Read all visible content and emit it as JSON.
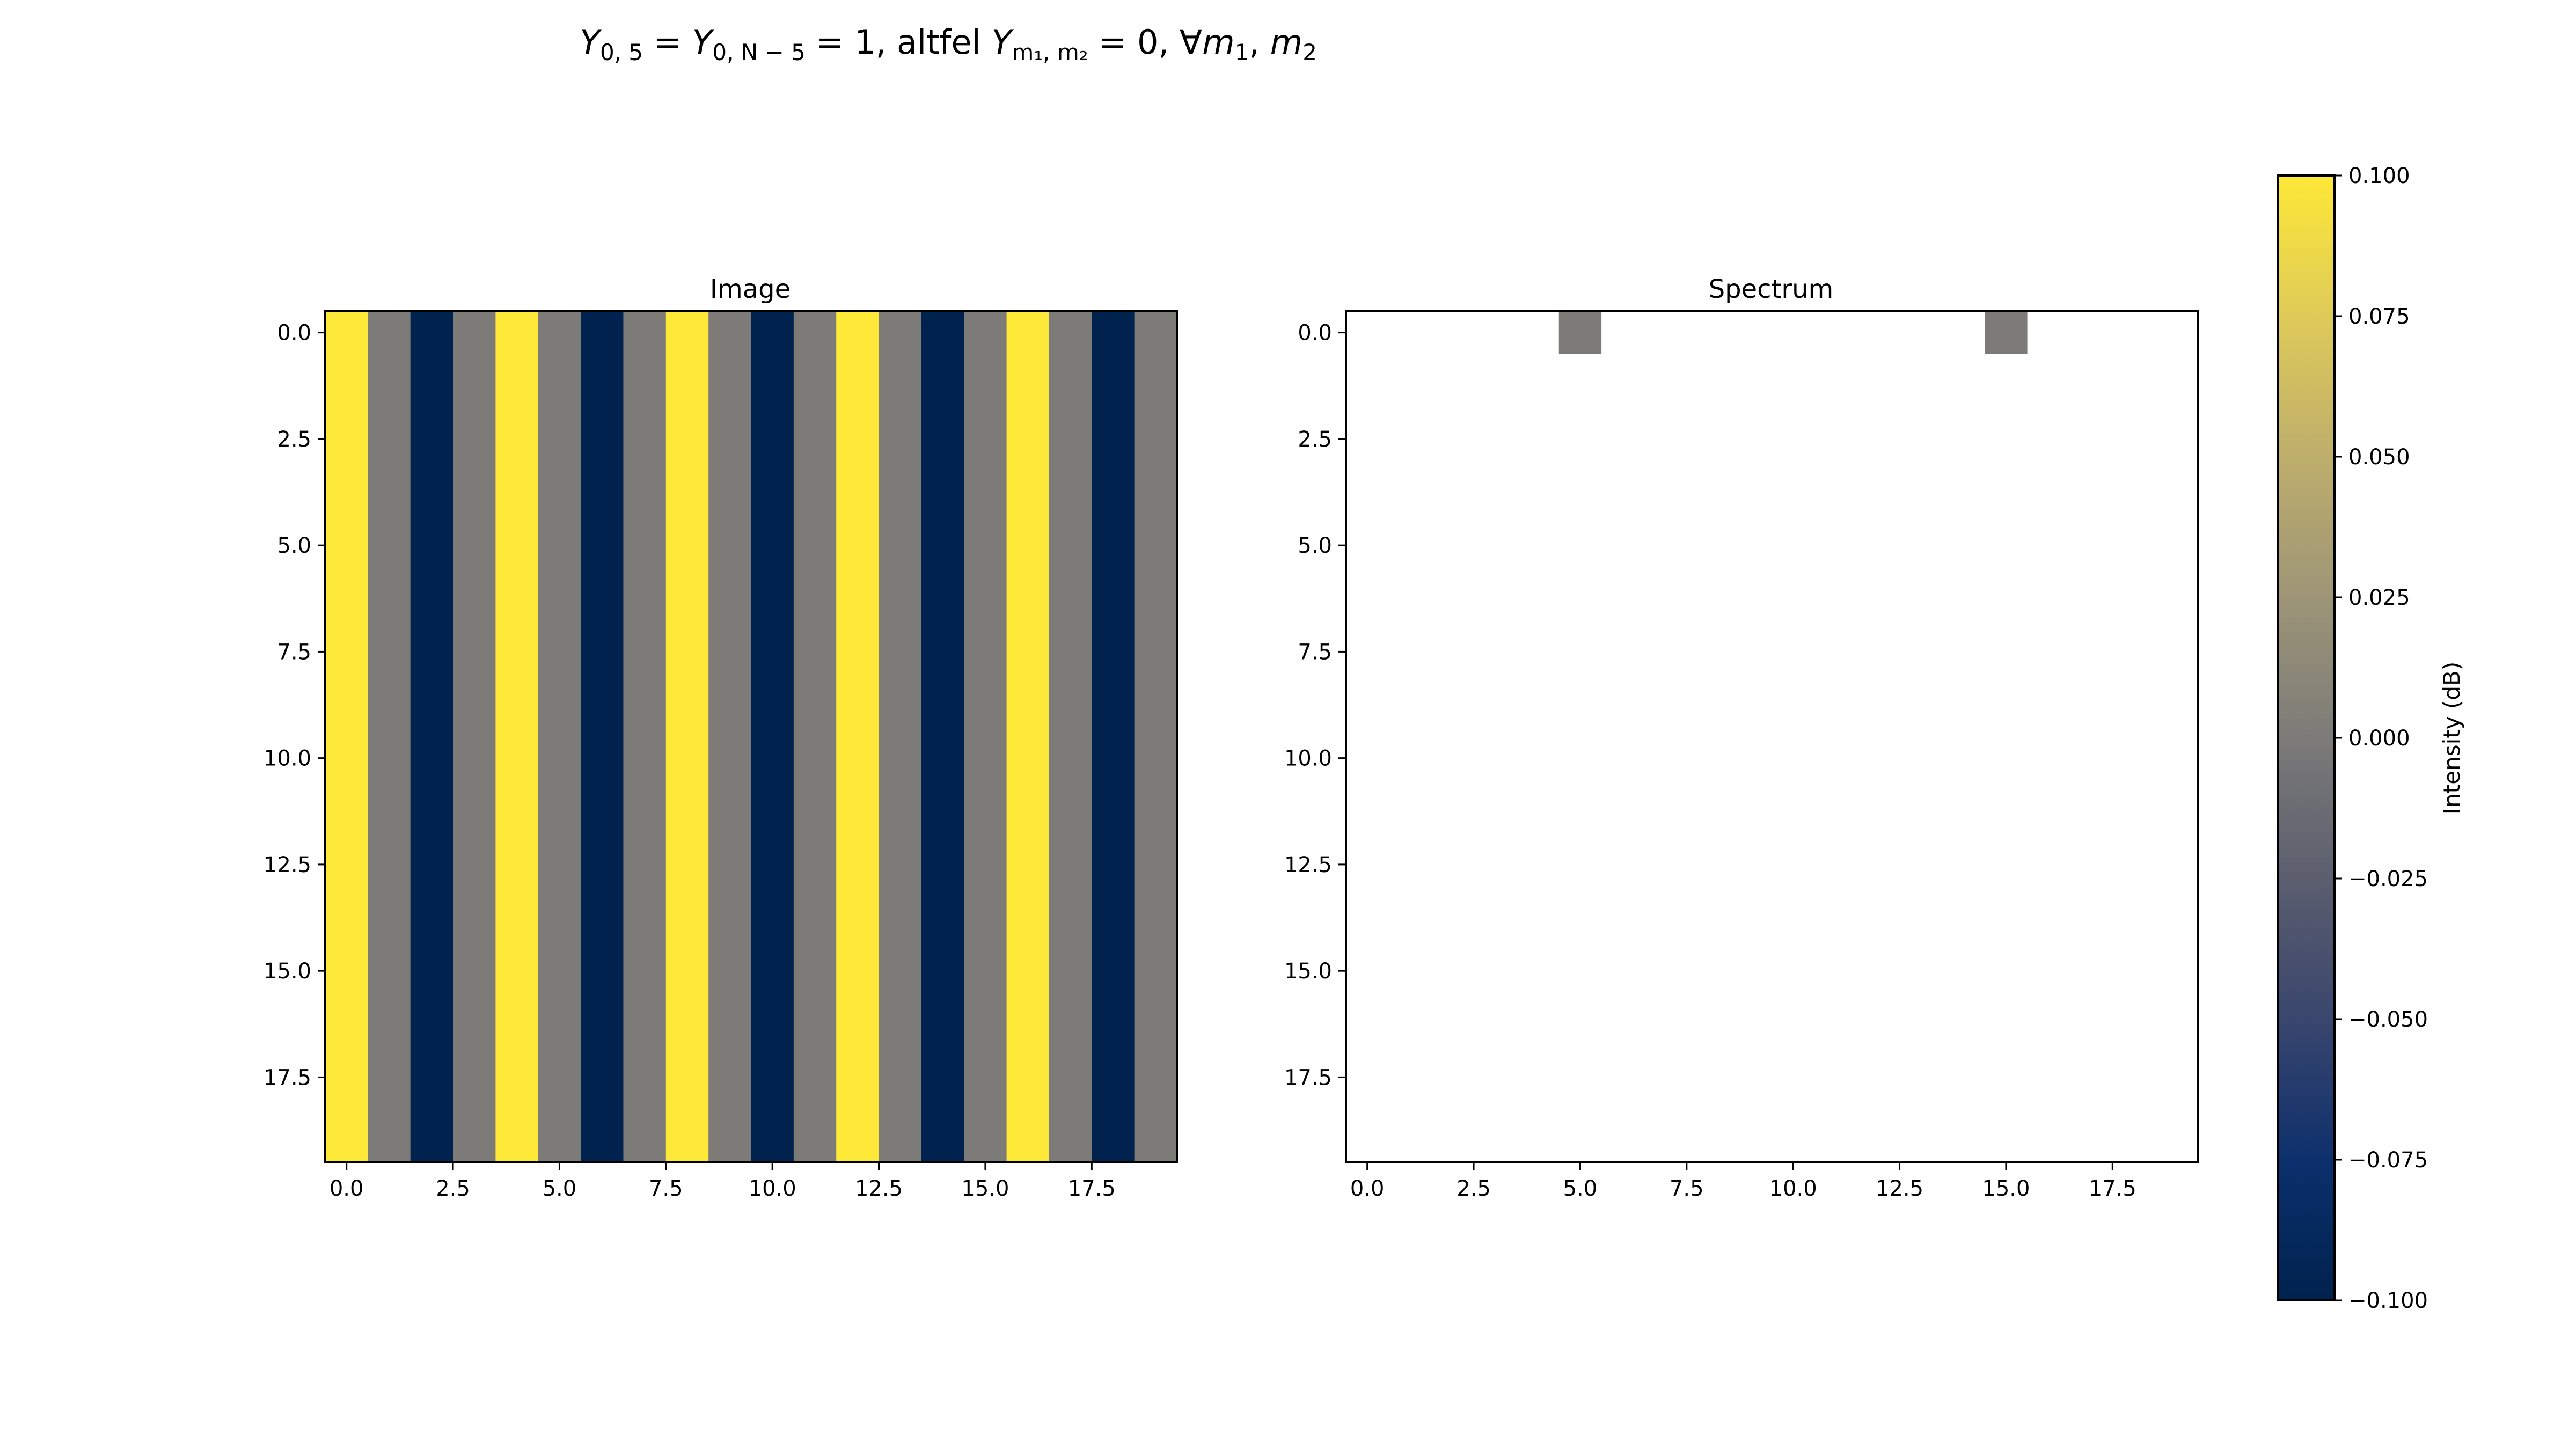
{
  "figure": {
    "title_parts": [
      {
        "t": "Y",
        "s": "i"
      },
      {
        "t": "0, 5",
        "s": "sub"
      },
      {
        "t": " = ",
        "s": "n"
      },
      {
        "t": "Y",
        "s": "i"
      },
      {
        "t": "0, N − 5",
        "s": "sub"
      },
      {
        "t": " = 1, altfel ",
        "s": "n"
      },
      {
        "t": "Y",
        "s": "i"
      },
      {
        "t": "m₁, m₂",
        "s": "sub"
      },
      {
        "t": " = 0,  ∀",
        "s": "n"
      },
      {
        "t": "m",
        "s": "i"
      },
      {
        "t": "1",
        "s": "sub"
      },
      {
        "t": ", ",
        "s": "n"
      },
      {
        "t": "m",
        "s": "i"
      },
      {
        "t": "2",
        "s": "sub"
      }
    ]
  },
  "colors": {
    "yellow": "#FEE838",
    "gray": "#7C7B78",
    "navy": "#00224E",
    "axis": "#000000",
    "background": "#FFFFFF"
  },
  "colormap": "cividis",
  "chart_data": [
    {
      "type": "heatmap",
      "title": "Image",
      "xlim": [
        -0.5,
        19.5
      ],
      "ylim": [
        19.5,
        -0.5
      ],
      "xticks": [
        0.0,
        2.5,
        5.0,
        7.5,
        10.0,
        12.5,
        15.0,
        17.5
      ],
      "yticks": [
        0.0,
        2.5,
        5.0,
        7.5,
        10.0,
        12.5,
        15.0,
        17.5
      ],
      "xtick_labels": [
        "0.0",
        "2.5",
        "5.0",
        "7.5",
        "10.0",
        "12.5",
        "15.0",
        "17.5"
      ],
      "ytick_labels": [
        "0.0",
        "2.5",
        "5.0",
        "7.5",
        "10.0",
        "12.5",
        "15.0",
        "17.5"
      ],
      "rows": 20,
      "column_values": [
        0.1,
        0.0,
        -0.1,
        0.0,
        0.1,
        0.0,
        -0.1,
        0.0,
        0.1,
        0.0,
        -0.1,
        0.0,
        0.1,
        0.0,
        -0.1,
        0.0,
        0.1,
        0.0,
        -0.1,
        0.0
      ],
      "note_rows_identical": true
    },
    {
      "type": "heatmap",
      "title": "Spectrum",
      "xlim": [
        -0.5,
        19.5
      ],
      "ylim": [
        19.5,
        -0.5
      ],
      "xticks": [
        0.0,
        2.5,
        5.0,
        7.5,
        10.0,
        12.5,
        15.0,
        17.5
      ],
      "yticks": [
        0.0,
        2.5,
        5.0,
        7.5,
        10.0,
        12.5,
        15.0,
        17.5
      ],
      "xtick_labels": [
        "0.0",
        "2.5",
        "5.0",
        "7.5",
        "10.0",
        "12.5",
        "15.0",
        "17.5"
      ],
      "ytick_labels": [
        "0.0",
        "2.5",
        "5.0",
        "7.5",
        "10.0",
        "12.5",
        "15.0",
        "17.5"
      ],
      "rows": 20,
      "cells": [
        {
          "row": 0,
          "col": 5,
          "value": 0.0
        },
        {
          "row": 0,
          "col": 15,
          "value": 0.0
        }
      ],
      "other_cells": "empty"
    }
  ],
  "colorbar": {
    "label": "Intensity (dB)",
    "vmin": -0.1,
    "vmax": 0.1,
    "ticks": [
      0.1,
      0.075,
      0.05,
      0.025,
      0.0,
      -0.025,
      -0.05,
      -0.075,
      -0.1
    ],
    "tick_labels": [
      "0.100",
      "0.075",
      "0.050",
      "0.025",
      "0.000",
      "−0.025",
      "−0.050",
      "−0.075",
      "−0.100"
    ]
  }
}
